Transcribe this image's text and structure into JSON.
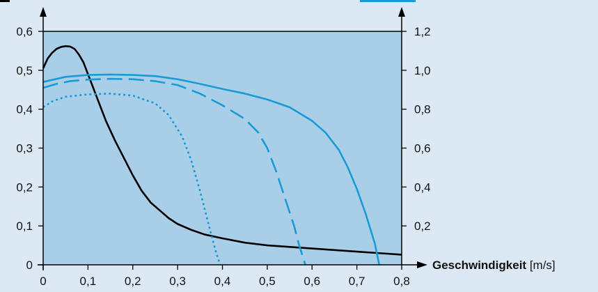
{
  "chart_data": {
    "type": "line",
    "xlabel_bold": "Geschwindigkeit",
    "xlabel_unit": " [m/s]",
    "xlim": [
      0,
      0.8
    ],
    "ylim_left": [
      0,
      0.6
    ],
    "ylim_right": [
      0,
      1.2
    ],
    "x_ticks": [
      "0",
      "0,1",
      "0,2",
      "0,3",
      "0,4",
      "0,5",
      "0,6",
      "0,7",
      "0,8"
    ],
    "x_tick_values": [
      0,
      0.1,
      0.2,
      0.3,
      0.4,
      0.5,
      0.6,
      0.7,
      0.8
    ],
    "y_left_ticks": [
      "0",
      "0,1",
      "0,2",
      "0,3",
      "0,4",
      "0,5",
      "0,6"
    ],
    "y_left_tick_values": [
      0,
      0.1,
      0.2,
      0.3,
      0.4,
      0.5,
      0.6
    ],
    "y_right_ticks": [
      "0,2",
      "0,4",
      "0,6",
      "0,8",
      "1,0",
      "1,2"
    ],
    "y_right_tick_values": [
      0.2,
      0.4,
      0.6,
      0.8,
      1.0,
      1.2
    ],
    "colors": {
      "plot_bg": "#a9cfe8",
      "page_bg": "#dce9f5",
      "black": "#000000",
      "blue": "#1a9ad6"
    },
    "series": [
      {
        "id": "black-solid",
        "color": "#000000",
        "dash": "",
        "axis": "left",
        "points": [
          [
            0,
            0.505
          ],
          [
            0.01,
            0.53
          ],
          [
            0.02,
            0.545
          ],
          [
            0.03,
            0.555
          ],
          [
            0.04,
            0.56
          ],
          [
            0.05,
            0.562
          ],
          [
            0.06,
            0.561
          ],
          [
            0.07,
            0.555
          ],
          [
            0.08,
            0.54
          ],
          [
            0.09,
            0.52
          ],
          [
            0.1,
            0.49
          ],
          [
            0.12,
            0.43
          ],
          [
            0.14,
            0.37
          ],
          [
            0.16,
            0.32
          ],
          [
            0.18,
            0.275
          ],
          [
            0.2,
            0.23
          ],
          [
            0.22,
            0.19
          ],
          [
            0.24,
            0.16
          ],
          [
            0.26,
            0.14
          ],
          [
            0.28,
            0.12
          ],
          [
            0.3,
            0.105
          ],
          [
            0.33,
            0.09
          ],
          [
            0.36,
            0.078
          ],
          [
            0.4,
            0.068
          ],
          [
            0.45,
            0.057
          ],
          [
            0.5,
            0.05
          ],
          [
            0.55,
            0.046
          ],
          [
            0.6,
            0.042
          ],
          [
            0.65,
            0.038
          ],
          [
            0.7,
            0.034
          ],
          [
            0.75,
            0.03
          ],
          [
            0.8,
            0.026
          ]
        ]
      },
      {
        "id": "blue-solid",
        "color": "#1a9ad6",
        "dash": "",
        "axis": "left",
        "points": [
          [
            0,
            0.47
          ],
          [
            0.05,
            0.483
          ],
          [
            0.1,
            0.488
          ],
          [
            0.15,
            0.489
          ],
          [
            0.2,
            0.488
          ],
          [
            0.25,
            0.485
          ],
          [
            0.3,
            0.477
          ],
          [
            0.35,
            0.465
          ],
          [
            0.4,
            0.452
          ],
          [
            0.45,
            0.44
          ],
          [
            0.5,
            0.425
          ],
          [
            0.55,
            0.405
          ],
          [
            0.6,
            0.37
          ],
          [
            0.63,
            0.34
          ],
          [
            0.66,
            0.295
          ],
          [
            0.68,
            0.25
          ],
          [
            0.7,
            0.195
          ],
          [
            0.72,
            0.13
          ],
          [
            0.74,
            0.055
          ],
          [
            0.75,
            0.0
          ]
        ]
      },
      {
        "id": "blue-dashed",
        "color": "#1a9ad6",
        "dash": "22,9",
        "axis": "left",
        "points": [
          [
            0,
            0.455
          ],
          [
            0.03,
            0.465
          ],
          [
            0.06,
            0.472
          ],
          [
            0.1,
            0.476
          ],
          [
            0.15,
            0.478
          ],
          [
            0.2,
            0.477
          ],
          [
            0.25,
            0.472
          ],
          [
            0.3,
            0.462
          ],
          [
            0.35,
            0.44
          ],
          [
            0.4,
            0.41
          ],
          [
            0.45,
            0.375
          ],
          [
            0.48,
            0.34
          ],
          [
            0.5,
            0.3
          ],
          [
            0.52,
            0.24
          ],
          [
            0.54,
            0.17
          ],
          [
            0.56,
            0.1
          ],
          [
            0.57,
            0.055
          ],
          [
            0.585,
            0.0
          ]
        ]
      },
      {
        "id": "blue-dotted",
        "color": "#1a9ad6",
        "dash": "3,4",
        "axis": "left",
        "points": [
          [
            0,
            0.405
          ],
          [
            0.02,
            0.42
          ],
          [
            0.05,
            0.432
          ],
          [
            0.1,
            0.438
          ],
          [
            0.15,
            0.44
          ],
          [
            0.2,
            0.435
          ],
          [
            0.25,
            0.415
          ],
          [
            0.28,
            0.385
          ],
          [
            0.31,
            0.33
          ],
          [
            0.33,
            0.27
          ],
          [
            0.35,
            0.19
          ],
          [
            0.37,
            0.1
          ],
          [
            0.385,
            0.035
          ],
          [
            0.395,
            0.0
          ]
        ]
      }
    ]
  }
}
